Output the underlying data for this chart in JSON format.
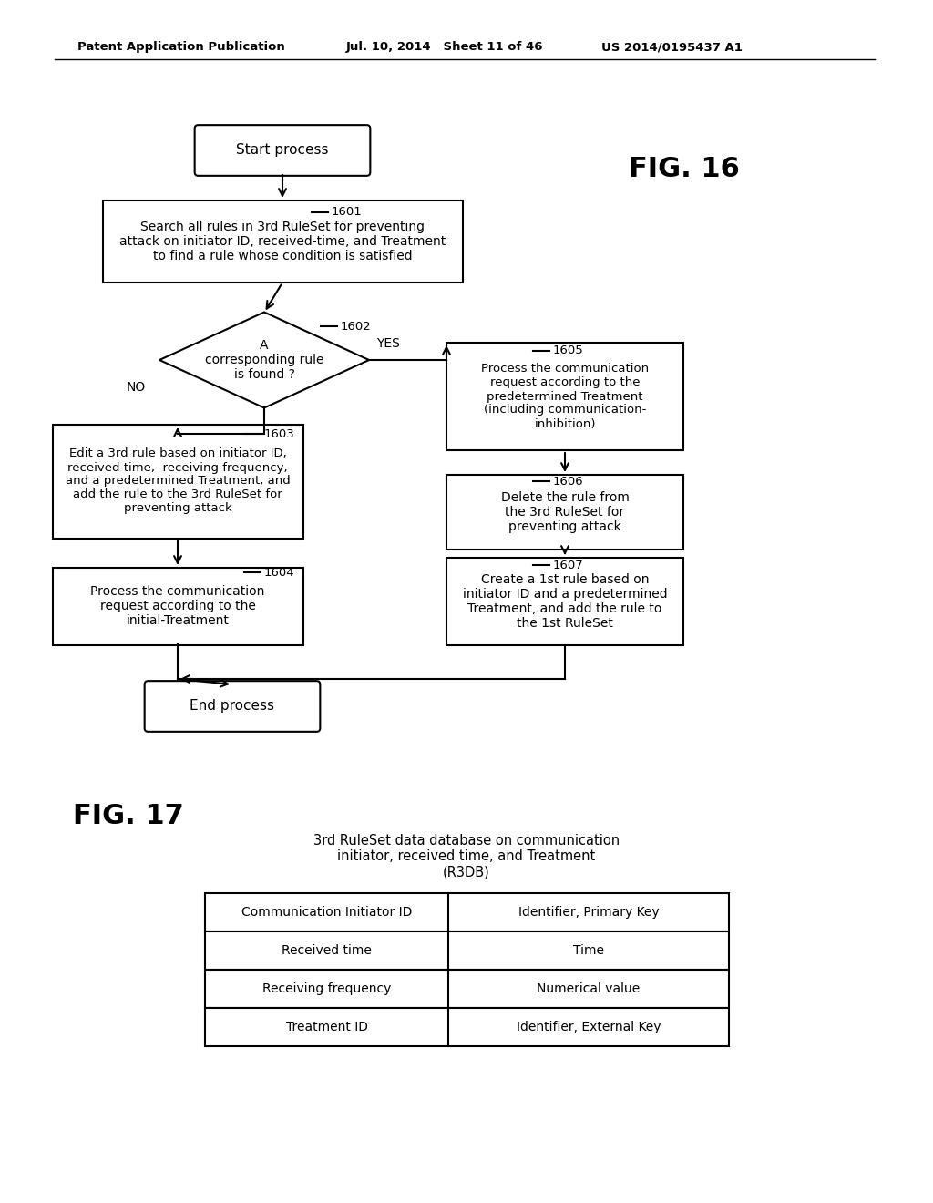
{
  "bg_color": "#ffffff",
  "header_text": "Patent Application Publication",
  "header_date": "Jul. 10, 2014   Sheet 11 of 46",
  "header_patent": "US 2014/0195437 A1",
  "fig16_label": "FIG. 16",
  "fig17_label": "FIG. 17",
  "fig17_title": "3rd RuleSet data database on communication\ninitiator, received time, and Treatment\n(R3DB)",
  "table_rows": [
    [
      "Communication Initiator ID",
      "Identifier, Primary Key"
    ],
    [
      "Received time",
      "Time"
    ],
    [
      "Receiving frequency",
      "Numerical value"
    ],
    [
      "Treatment ID",
      "Identifier, External Key"
    ]
  ],
  "line_color": "#000000",
  "text_color": "#000000"
}
